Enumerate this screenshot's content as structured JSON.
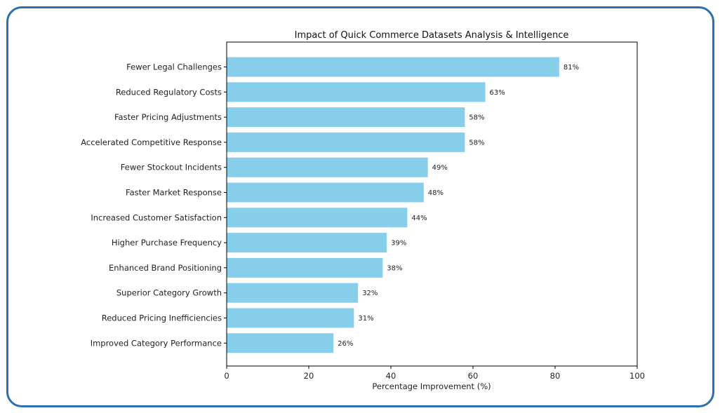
{
  "chart_data": {
    "type": "bar",
    "orientation": "horizontal",
    "title": "Impact of Quick Commerce Datasets Analysis & Intelligence",
    "xlabel": "Percentage Improvement (%)",
    "ylabel": "",
    "xlim": [
      0,
      100
    ],
    "xticks": [
      0,
      20,
      40,
      60,
      80,
      100
    ],
    "categories": [
      "Fewer Legal Challenges",
      "Reduced Regulatory Costs",
      "Faster Pricing Adjustments",
      "Accelerated Competitive Response",
      "Fewer Stockout Incidents",
      "Faster Market Response",
      "Increased Customer Satisfaction",
      "Higher Purchase Frequency",
      "Enhanced Brand Positioning",
      "Superior Category Growth",
      "Reduced Pricing Inefficiencies",
      "Improved Category Performance"
    ],
    "values": [
      81,
      63,
      58,
      58,
      49,
      48,
      44,
      39,
      38,
      32,
      31,
      26
    ],
    "value_labels": [
      "81%",
      "63%",
      "58%",
      "58%",
      "49%",
      "48%",
      "44%",
      "39%",
      "38%",
      "32%",
      "31%",
      "26%"
    ],
    "bar_color": "#87ceeb",
    "border_color": "#2f6fad"
  }
}
